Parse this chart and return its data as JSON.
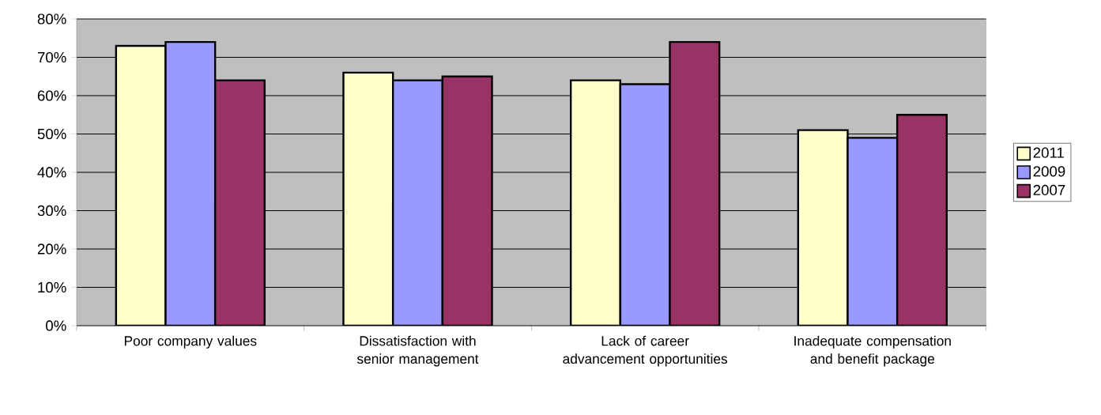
{
  "chart_data": {
    "type": "bar",
    "categories": [
      "Poor company values",
      "Dissatisfaction with senior management",
      "Lack of career advancement opportunities",
      "Inadequate compensation and benefit package"
    ],
    "series": [
      {
        "name": "2011",
        "color": "#ffffcc",
        "values": [
          73,
          66,
          64,
          51
        ]
      },
      {
        "name": "2009",
        "color": "#9999ff",
        "values": [
          74,
          64,
          63,
          49
        ]
      },
      {
        "name": "2007",
        "color": "#993366",
        "values": [
          64,
          65,
          74,
          55
        ]
      }
    ],
    "ylim": [
      0,
      80
    ],
    "yticks": [
      {
        "value": 0,
        "label": "0%"
      },
      {
        "value": 10,
        "label": "10%"
      },
      {
        "value": 20,
        "label": "20%"
      },
      {
        "value": 30,
        "label": "30%"
      },
      {
        "value": 40,
        "label": "40%"
      },
      {
        "value": 50,
        "label": "50%"
      },
      {
        "value": 60,
        "label": "60%"
      },
      {
        "value": 70,
        "label": "70%"
      },
      {
        "value": 80,
        "label": "80%"
      }
    ],
    "grid": "y",
    "legend": "right"
  }
}
